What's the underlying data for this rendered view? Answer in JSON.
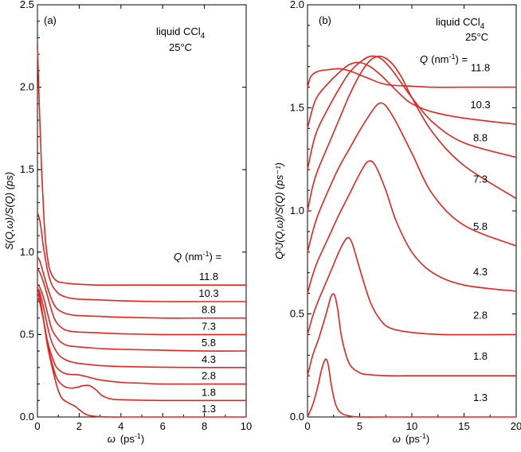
{
  "colors": {
    "curve": "#e8231d",
    "axis": "#000000"
  },
  "chart_data": [
    {
      "type": "line",
      "panel_label": "(a)",
      "annotation_line1": "liquid CCl",
      "annotation_sub": "4",
      "annotation_line2": "25°C",
      "q_header_q": "Q",
      "q_header_unit": "(nm",
      "q_header_sup": "-1",
      "q_header_end": ") =",
      "ylabel": "S(Q,ω)/S(Q) (ps)",
      "xlabel_var": "ω",
      "xlabel_unit": "(ps",
      "xlabel_sup": "-1",
      "xlabel_end": ")",
      "xlim": [
        0,
        10
      ],
      "ylim": [
        0,
        2.5
      ],
      "x_ticks": [
        "0",
        "2",
        "4",
        "6",
        "8",
        "10"
      ],
      "y_ticks": [
        "0.0",
        "0.5",
        "1.0",
        "1.5",
        "2.0",
        "2.5"
      ],
      "series": [
        {
          "name": "11.8",
          "x": [
            0,
            0.1,
            0.2,
            0.3,
            0.4,
            0.5,
            0.6,
            0.8,
            1.0,
            1.2,
            1.5,
            2,
            3,
            4,
            6,
            8,
            10
          ],
          "y": [
            2.26,
            1.85,
            1.5,
            1.23,
            1.05,
            0.95,
            0.89,
            0.84,
            0.82,
            0.815,
            0.81,
            0.805,
            0.8,
            0.8,
            0.8,
            0.8,
            0.8
          ]
        },
        {
          "name": "10.3",
          "x": [
            0,
            0.1,
            0.2,
            0.3,
            0.5,
            0.7,
            1.0,
            1.3,
            1.6,
            2,
            3,
            4,
            6,
            8,
            10
          ],
          "y": [
            1.24,
            1.2,
            1.12,
            1.02,
            0.88,
            0.8,
            0.75,
            0.73,
            0.72,
            0.715,
            0.71,
            0.705,
            0.7,
            0.7,
            0.7
          ]
        },
        {
          "name": "8.8",
          "x": [
            0,
            0.1,
            0.2,
            0.4,
            0.6,
            0.8,
            1.0,
            1.3,
            1.6,
            2,
            3,
            4,
            6,
            8,
            10
          ],
          "y": [
            0.97,
            0.95,
            0.91,
            0.82,
            0.74,
            0.68,
            0.65,
            0.63,
            0.62,
            0.615,
            0.61,
            0.605,
            0.6,
            0.6,
            0.6
          ]
        },
        {
          "name": "7.3",
          "x": [
            0,
            0.1,
            0.2,
            0.4,
            0.6,
            0.8,
            1.0,
            1.3,
            1.6,
            2,
            3,
            4,
            6,
            8,
            10
          ],
          "y": [
            0.9,
            0.88,
            0.85,
            0.77,
            0.68,
            0.6,
            0.56,
            0.53,
            0.52,
            0.515,
            0.51,
            0.505,
            0.5,
            0.5,
            0.5
          ]
        },
        {
          "name": "5.8",
          "x": [
            0,
            0.1,
            0.3,
            0.5,
            0.7,
            1.0,
            1.3,
            1.6,
            2,
            2.5,
            3,
            4,
            6,
            8,
            10
          ],
          "y": [
            0.8,
            0.79,
            0.72,
            0.62,
            0.53,
            0.47,
            0.44,
            0.43,
            0.425,
            0.42,
            0.415,
            0.41,
            0.405,
            0.4,
            0.4
          ]
        },
        {
          "name": "4.3",
          "x": [
            0,
            0.1,
            0.3,
            0.5,
            0.7,
            1.0,
            1.3,
            1.6,
            2,
            2.5,
            3,
            4,
            6,
            8,
            10
          ],
          "y": [
            0.78,
            0.76,
            0.66,
            0.54,
            0.45,
            0.38,
            0.35,
            0.335,
            0.325,
            0.318,
            0.312,
            0.306,
            0.302,
            0.3,
            0.3
          ]
        },
        {
          "name": "2.8",
          "x": [
            0,
            0.1,
            0.3,
            0.5,
            0.8,
            1.0,
            1.3,
            1.6,
            2,
            2.5,
            3,
            4,
            5,
            6,
            8,
            10
          ],
          "y": [
            0.72,
            0.7,
            0.58,
            0.45,
            0.33,
            0.29,
            0.265,
            0.258,
            0.255,
            0.24,
            0.225,
            0.21,
            0.205,
            0.2,
            0.2,
            0.2
          ]
        },
        {
          "name": "1.8",
          "x": [
            0,
            0.1,
            0.3,
            0.5,
            0.8,
            1.0,
            1.3,
            1.6,
            1.9,
            2.2,
            2.5,
            2.8,
            3.1,
            3.5,
            4,
            5,
            6,
            8,
            10
          ],
          "y": [
            0.75,
            0.72,
            0.58,
            0.43,
            0.28,
            0.22,
            0.185,
            0.175,
            0.18,
            0.19,
            0.19,
            0.165,
            0.13,
            0.11,
            0.105,
            0.102,
            0.1,
            0.1,
            0.1
          ]
        },
        {
          "name": "1.3",
          "x": [
            0,
            0.1,
            0.3,
            0.5,
            0.8,
            1.0,
            1.2,
            1.5,
            1.8,
            2.0,
            2.2,
            2.4,
            2.7,
            3.0,
            3.5,
            4,
            6,
            8,
            10
          ],
          "y": [
            0.78,
            0.74,
            0.58,
            0.42,
            0.25,
            0.16,
            0.11,
            0.085,
            0.065,
            0.045,
            0.025,
            0.012,
            0.005,
            0.002,
            0.0,
            0.0,
            0.0,
            0.0,
            0.0
          ]
        }
      ]
    },
    {
      "type": "line",
      "panel_label": "(b)",
      "annotation_line1": "liquid CCl",
      "annotation_sub": "4",
      "annotation_line2": "25°C",
      "q_header_q": "Q",
      "q_header_unit": "(nm",
      "q_header_sup": "-1",
      "q_header_end": ") =",
      "ylabel": "Q²J(Q,ω)/S(Q) (ps⁻¹)",
      "xlabel_var": "ω",
      "xlabel_unit": "(ps",
      "xlabel_sup": "-1",
      "xlabel_end": ")",
      "xlim": [
        0,
        20
      ],
      "ylim": [
        0,
        2.0
      ],
      "x_ticks": [
        "0",
        "5",
        "10",
        "15",
        "20"
      ],
      "y_ticks": [
        "0.0",
        "0.5",
        "1.0",
        "1.5",
        "2.0"
      ],
      "series": [
        {
          "name": "11.8",
          "x": [
            0,
            0.3,
            0.7,
            1.2,
            2,
            3,
            4,
            5,
            6,
            7,
            8,
            10,
            12,
            15,
            20
          ],
          "y": [
            1.6,
            1.65,
            1.67,
            1.68,
            1.685,
            1.69,
            1.68,
            1.66,
            1.64,
            1.62,
            1.61,
            1.605,
            1.6,
            1.6,
            1.6
          ]
        },
        {
          "name": "10.3",
          "x": [
            0,
            0.5,
            1,
            2,
            3,
            4,
            5,
            6,
            7,
            8,
            9,
            10,
            12,
            15,
            20
          ],
          "y": [
            1.4,
            1.5,
            1.56,
            1.62,
            1.67,
            1.71,
            1.72,
            1.7,
            1.66,
            1.61,
            1.56,
            1.52,
            1.48,
            1.45,
            1.42
          ]
        },
        {
          "name": "8.8",
          "x": [
            0,
            0.5,
            1,
            2,
            3,
            4,
            5,
            6,
            7,
            8,
            9,
            10,
            12,
            15,
            20
          ],
          "y": [
            1.2,
            1.32,
            1.4,
            1.5,
            1.59,
            1.67,
            1.72,
            1.75,
            1.74,
            1.69,
            1.62,
            1.55,
            1.43,
            1.33,
            1.26
          ]
        },
        {
          "name": "7.3",
          "x": [
            0,
            0.5,
            1,
            2,
            3,
            4,
            5,
            6,
            7,
            8,
            9,
            10,
            12,
            15,
            20
          ],
          "y": [
            1.0,
            1.12,
            1.2,
            1.32,
            1.44,
            1.56,
            1.66,
            1.73,
            1.75,
            1.72,
            1.65,
            1.55,
            1.38,
            1.22,
            1.06
          ]
        },
        {
          "name": "5.8",
          "x": [
            0,
            0.5,
            1,
            2,
            3,
            4,
            5,
            6,
            6.8,
            7.5,
            8.5,
            10,
            12,
            15,
            20
          ],
          "y": [
            0.8,
            0.9,
            0.98,
            1.1,
            1.21,
            1.3,
            1.39,
            1.47,
            1.52,
            1.51,
            1.43,
            1.28,
            1.08,
            0.93,
            0.83
          ]
        },
        {
          "name": "4.3",
          "x": [
            0,
            0.5,
            1,
            2,
            3,
            4,
            5,
            5.8,
            6.5,
            7.5,
            8.5,
            10,
            12,
            15,
            20
          ],
          "y": [
            0.6,
            0.69,
            0.76,
            0.87,
            0.98,
            1.08,
            1.18,
            1.24,
            1.22,
            1.1,
            0.95,
            0.8,
            0.7,
            0.64,
            0.61
          ]
        },
        {
          "name": "2.8",
          "x": [
            0,
            0.5,
            1,
            1.5,
            2,
            2.5,
            3,
            3.5,
            3.9,
            4.3,
            5,
            6,
            7,
            8,
            10,
            13,
            20
          ],
          "y": [
            0.4,
            0.49,
            0.56,
            0.62,
            0.68,
            0.74,
            0.8,
            0.85,
            0.87,
            0.84,
            0.72,
            0.56,
            0.47,
            0.43,
            0.41,
            0.4,
            0.4
          ]
        },
        {
          "name": "1.8",
          "x": [
            0,
            0.5,
            1,
            1.5,
            2,
            2.3,
            2.6,
            2.9,
            3.3,
            4,
            5,
            6,
            8,
            10,
            15,
            20
          ],
          "y": [
            0.2,
            0.3,
            0.37,
            0.45,
            0.54,
            0.59,
            0.59,
            0.52,
            0.38,
            0.26,
            0.215,
            0.205,
            0.2,
            0.2,
            0.2,
            0.2
          ]
        },
        {
          "name": "1.3",
          "x": [
            0,
            0.5,
            1,
            1.3,
            1.6,
            1.8,
            2.0,
            2.3,
            2.7,
            3.2,
            4,
            5,
            7,
            10,
            15,
            20
          ],
          "y": [
            0.0,
            0.06,
            0.15,
            0.22,
            0.27,
            0.28,
            0.25,
            0.15,
            0.06,
            0.02,
            0.005,
            0.0,
            0.0,
            0.0,
            0.0,
            0.0
          ]
        }
      ]
    }
  ]
}
